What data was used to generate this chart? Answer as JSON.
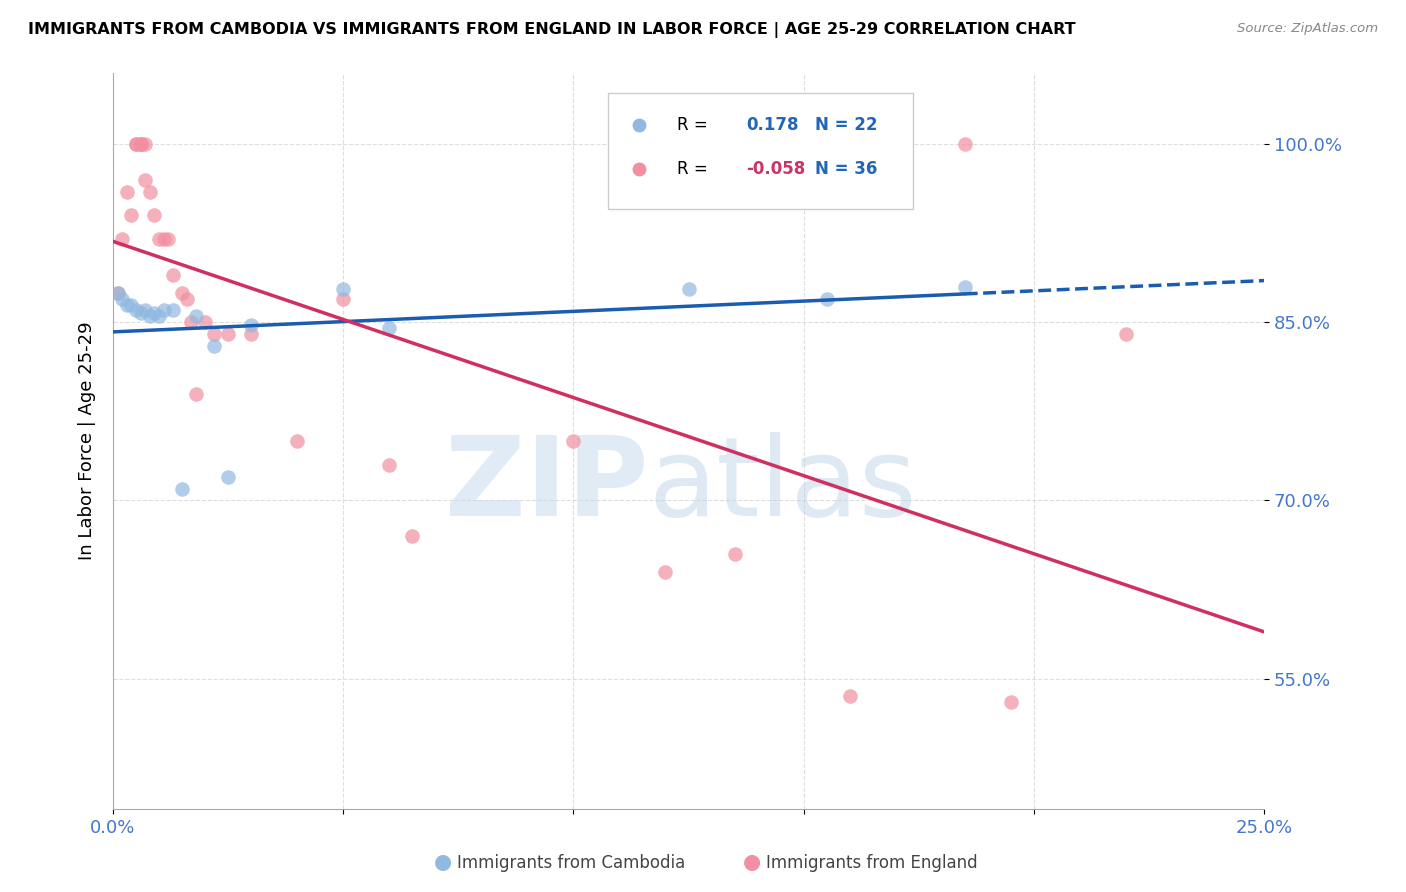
{
  "title": "IMMIGRANTS FROM CAMBODIA VS IMMIGRANTS FROM ENGLAND IN LABOR FORCE | AGE 25-29 CORRELATION CHART",
  "source": "Source: ZipAtlas.com",
  "ylabel": "In Labor Force | Age 25-29",
  "ytick_labels": [
    "100.0%",
    "85.0%",
    "70.0%",
    "55.0%"
  ],
  "ytick_values": [
    1.0,
    0.85,
    0.7,
    0.55
  ],
  "xlim": [
    0.0,
    0.25
  ],
  "ylim": [
    0.44,
    1.06
  ],
  "legend_r_val_cambodia": "0.178",
  "legend_n_cambodia": "N = 22",
  "legend_r_val_england": "-0.058",
  "legend_n_england": "N = 36",
  "cambodia_color": "#90B8E0",
  "england_color": "#F090A0",
  "trend_cambodia_color": "#1A5CB0",
  "trend_england_color": "#D03060",
  "trend_england_end": 0.25,
  "trend_cambodia_solid_end": 0.185,
  "trend_cambodia_dash_end": 0.25,
  "cambodia_x": [
    0.001,
    0.002,
    0.003,
    0.004,
    0.005,
    0.006,
    0.007,
    0.008,
    0.009,
    0.01,
    0.011,
    0.013,
    0.015,
    0.018,
    0.022,
    0.025,
    0.03,
    0.05,
    0.06,
    0.125,
    0.155,
    0.185
  ],
  "cambodia_y": [
    0.875,
    0.87,
    0.865,
    0.865,
    0.86,
    0.858,
    0.86,
    0.855,
    0.858,
    0.855,
    0.86,
    0.86,
    0.71,
    0.855,
    0.83,
    0.72,
    0.848,
    0.878,
    0.845,
    0.878,
    0.87,
    0.88
  ],
  "england_x": [
    0.001,
    0.002,
    0.003,
    0.004,
    0.005,
    0.005,
    0.006,
    0.006,
    0.006,
    0.007,
    0.007,
    0.008,
    0.009,
    0.01,
    0.011,
    0.012,
    0.013,
    0.015,
    0.016,
    0.017,
    0.018,
    0.02,
    0.022,
    0.025,
    0.03,
    0.04,
    0.05,
    0.06,
    0.065,
    0.1,
    0.12,
    0.135,
    0.16,
    0.185,
    0.195,
    0.22
  ],
  "england_y": [
    0.875,
    0.92,
    0.96,
    0.94,
    1.0,
    1.0,
    1.0,
    1.0,
    1.0,
    1.0,
    0.97,
    0.96,
    0.94,
    0.92,
    0.92,
    0.92,
    0.89,
    0.875,
    0.87,
    0.85,
    0.79,
    0.85,
    0.84,
    0.84,
    0.84,
    0.75,
    0.87,
    0.73,
    0.67,
    0.75,
    0.64,
    0.655,
    0.535,
    1.0,
    0.53,
    0.84
  ]
}
